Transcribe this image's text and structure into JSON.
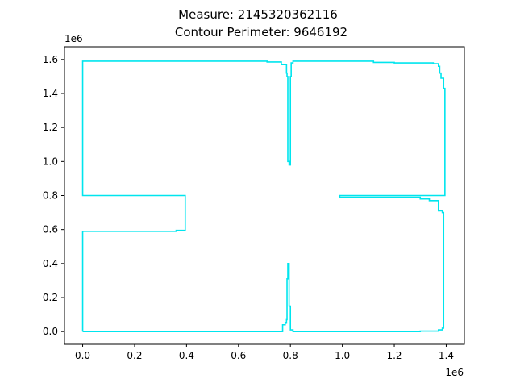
{
  "chart_data": {
    "type": "line",
    "title_line1": "Measure: 2145320362116",
    "title_line2": "Contour Perimeter: 9646192",
    "x_offset_label": "1e6",
    "y_offset_label": "1e6",
    "xlim": [
      -0.07,
      1.47
    ],
    "ylim": [
      -0.075,
      1.675
    ],
    "x_ticks": [
      0.0,
      0.2,
      0.4,
      0.6,
      0.8,
      1.0,
      1.2,
      1.4
    ],
    "x_tick_labels": [
      "0.0",
      "0.2",
      "0.4",
      "0.6",
      "0.8",
      "1.0",
      "1.2",
      "1.4"
    ],
    "y_ticks": [
      0.0,
      0.2,
      0.4,
      0.6,
      0.8,
      1.0,
      1.2,
      1.4,
      1.6
    ],
    "y_tick_labels": [
      "0.0",
      "0.2",
      "0.4",
      "0.6",
      "0.8",
      "1.0",
      "1.2",
      "1.4",
      "1.6"
    ],
    "grid": false,
    "line_color": "#00e5ee",
    "series": [
      {
        "points": [
          [
            0.0,
            0.0
          ],
          [
            0.0,
            0.59
          ],
          [
            0.36,
            0.59
          ],
          [
            0.36,
            0.595
          ],
          [
            0.395,
            0.595
          ],
          [
            0.395,
            0.8
          ],
          [
            0.0,
            0.8
          ],
          [
            0.0,
            1.59
          ],
          [
            0.71,
            1.59
          ],
          [
            0.71,
            1.585
          ],
          [
            0.765,
            1.585
          ],
          [
            0.765,
            1.57
          ],
          [
            0.785,
            1.57
          ],
          [
            0.785,
            1.52
          ],
          [
            0.787,
            1.52
          ],
          [
            0.787,
            1.5
          ],
          [
            0.79,
            1.5
          ],
          [
            0.79,
            1.0
          ],
          [
            0.795,
            1.0
          ],
          [
            0.795,
            0.98
          ],
          [
            0.8,
            0.98
          ],
          [
            0.8,
            1.5
          ],
          [
            0.803,
            1.5
          ],
          [
            0.803,
            1.58
          ],
          [
            0.81,
            1.58
          ],
          [
            0.81,
            1.59
          ],
          [
            1.12,
            1.59
          ],
          [
            1.12,
            1.583
          ],
          [
            1.2,
            1.583
          ],
          [
            1.2,
            1.58
          ],
          [
            1.35,
            1.58
          ],
          [
            1.35,
            1.575
          ],
          [
            1.37,
            1.575
          ],
          [
            1.37,
            1.56
          ],
          [
            1.375,
            1.56
          ],
          [
            1.375,
            1.52
          ],
          [
            1.38,
            1.52
          ],
          [
            1.38,
            1.49
          ],
          [
            1.39,
            1.49
          ],
          [
            1.39,
            1.43
          ],
          [
            1.395,
            1.43
          ],
          [
            1.395,
            0.8
          ],
          [
            0.99,
            0.8
          ],
          [
            0.99,
            0.79
          ],
          [
            1.3,
            0.79
          ],
          [
            1.3,
            0.78
          ],
          [
            1.335,
            0.78
          ],
          [
            1.335,
            0.77
          ],
          [
            1.37,
            0.77
          ],
          [
            1.37,
            0.71
          ],
          [
            1.385,
            0.71
          ],
          [
            1.385,
            0.7
          ],
          [
            1.39,
            0.7
          ],
          [
            1.39,
            0.02
          ],
          [
            1.385,
            0.02
          ],
          [
            1.385,
            0.01
          ],
          [
            1.37,
            0.01
          ],
          [
            1.37,
            0.003
          ],
          [
            1.3,
            0.003
          ],
          [
            1.3,
            0.0
          ],
          [
            0.81,
            0.0
          ],
          [
            0.81,
            0.01
          ],
          [
            0.8,
            0.01
          ],
          [
            0.8,
            0.15
          ],
          [
            0.795,
            0.15
          ],
          [
            0.795,
            0.4
          ],
          [
            0.79,
            0.4
          ],
          [
            0.79,
            0.31
          ],
          [
            0.787,
            0.31
          ],
          [
            0.787,
            0.07
          ],
          [
            0.785,
            0.07
          ],
          [
            0.785,
            0.05
          ],
          [
            0.78,
            0.05
          ],
          [
            0.78,
            0.04
          ],
          [
            0.77,
            0.04
          ],
          [
            0.77,
            0.0
          ],
          [
            0.0,
            0.0
          ]
        ]
      }
    ]
  }
}
